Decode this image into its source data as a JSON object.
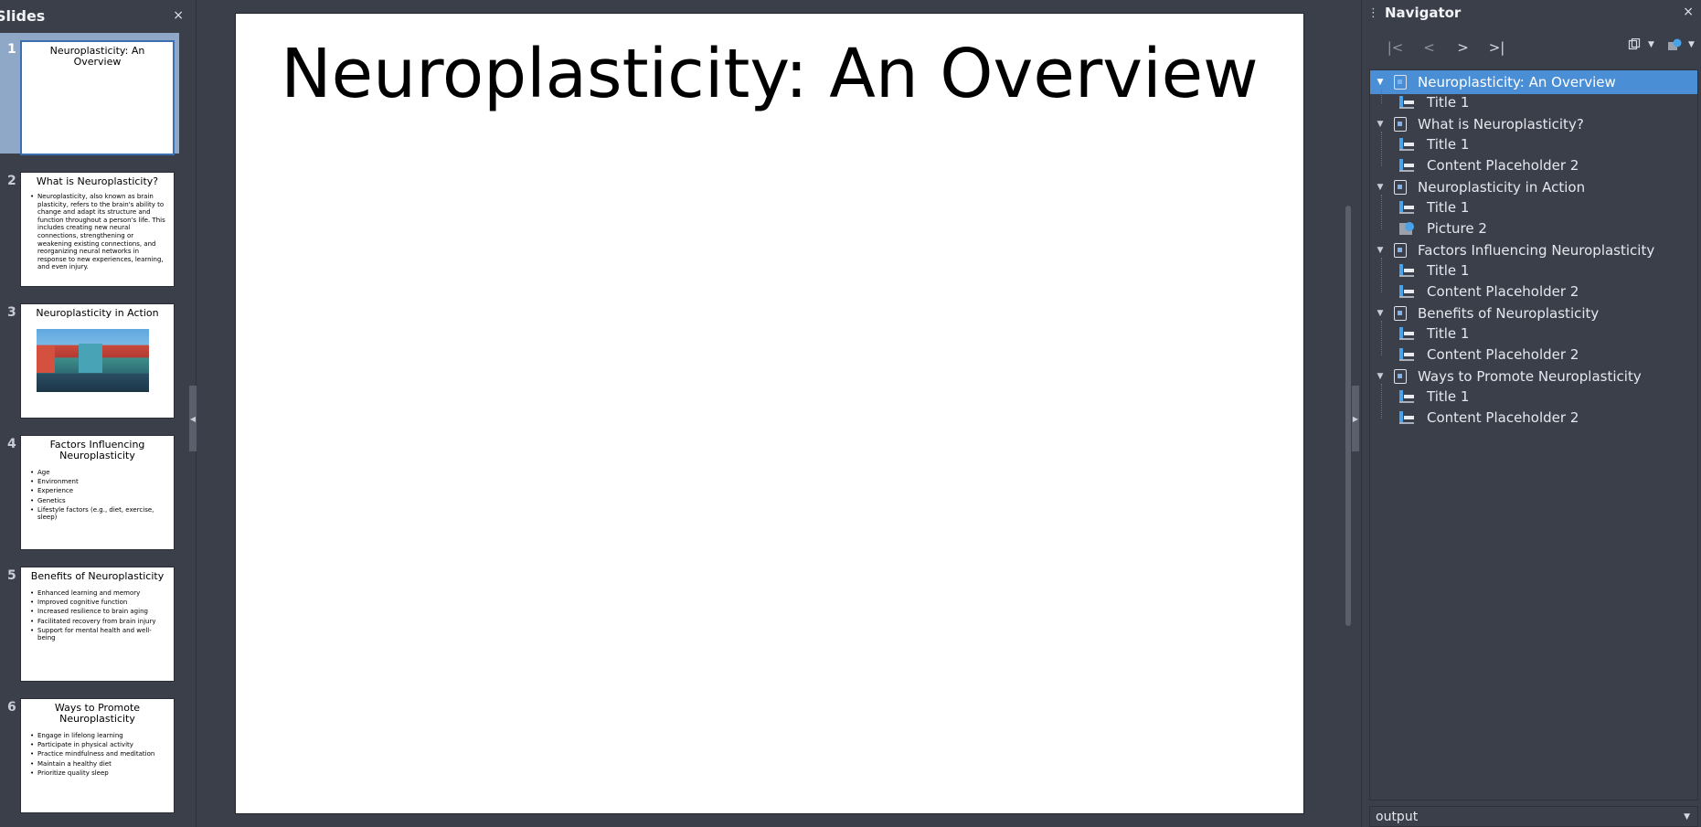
{
  "slides_pane": {
    "title": "Slides",
    "close_icon": "×",
    "slides": [
      {
        "number": "1",
        "title": "Neuroplasticity: An Overview",
        "body_type": "none",
        "bullets": []
      },
      {
        "number": "2",
        "title": "What is Neuroplasticity?",
        "body_type": "paragraph",
        "paragraph": "Neuroplasticity, also known as brain plasticity, refers to the brain's ability to change and adapt its structure and function throughout a person's life. This includes creating new neural connections, strengthening or weakening existing connections, and reorganizing neural networks in response to new experiences, learning, and even injury."
      },
      {
        "number": "3",
        "title": "Neuroplasticity in Action",
        "body_type": "picture"
      },
      {
        "number": "4",
        "title": "Factors Influencing Neuroplasticity",
        "body_type": "bullets",
        "bullets": [
          "Age",
          "Environment",
          "Experience",
          "Genetics",
          "Lifestyle factors (e.g., diet, exercise, sleep)"
        ]
      },
      {
        "number": "5",
        "title": "Benefits of Neuroplasticity",
        "body_type": "bullets",
        "bullets": [
          "Enhanced learning and memory",
          "Improved cognitive function",
          "Increased resilience to brain aging",
          "Facilitated recovery from brain injury",
          "Support for mental health and well-being"
        ]
      },
      {
        "number": "6",
        "title": "Ways to Promote Neuroplasticity",
        "body_type": "bullets",
        "bullets": [
          "Engage in lifelong learning",
          "Participate in physical activity",
          "Practice mindfulness and meditation",
          "Maintain a healthy diet",
          "Prioritize quality sleep"
        ]
      }
    ]
  },
  "canvas": {
    "slide_title": "Neuroplasticity: An Overview"
  },
  "navigator": {
    "title": "Navigator",
    "close_icon": "×",
    "toolbar": {
      "first": "|<",
      "prev": "<",
      "next": ">",
      "last": ">|"
    },
    "tree": [
      {
        "label": "Neuroplasticity: An Overview",
        "selected": true,
        "children": [
          {
            "label": "Title 1",
            "kind": "text"
          }
        ]
      },
      {
        "label": "What is Neuroplasticity?",
        "children": [
          {
            "label": "Title 1",
            "kind": "text"
          },
          {
            "label": "Content Placeholder 2",
            "kind": "text"
          }
        ]
      },
      {
        "label": "Neuroplasticity in Action",
        "children": [
          {
            "label": "Title 1",
            "kind": "text"
          },
          {
            "label": "Picture 2",
            "kind": "picture"
          }
        ]
      },
      {
        "label": "Factors Influencing Neuroplasticity",
        "children": [
          {
            "label": "Title 1",
            "kind": "text"
          },
          {
            "label": "Content Placeholder 2",
            "kind": "text"
          }
        ]
      },
      {
        "label": "Benefits of Neuroplasticity",
        "children": [
          {
            "label": "Title 1",
            "kind": "text"
          },
          {
            "label": "Content Placeholder 2",
            "kind": "text"
          }
        ]
      },
      {
        "label": "Ways to Promote Neuroplasticity",
        "children": [
          {
            "label": "Title 1",
            "kind": "text"
          },
          {
            "label": "Content Placeholder 2",
            "kind": "text"
          }
        ]
      }
    ],
    "document_select": "output"
  }
}
